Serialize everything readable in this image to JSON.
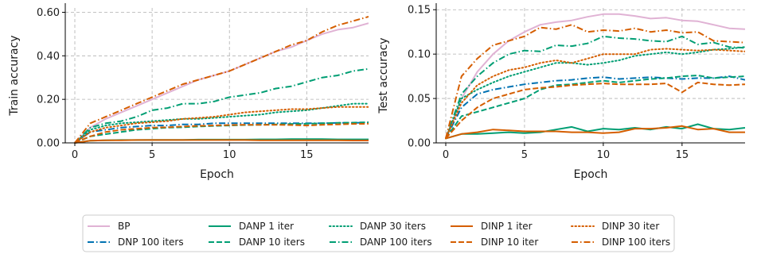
{
  "chart_data": [
    {
      "type": "line",
      "xlabel": "Epoch",
      "ylabel": "Train accuracy",
      "xlim": [
        0,
        19
      ],
      "ylim": [
        0,
        0.62
      ],
      "xticks": [
        0,
        5,
        10,
        15
      ],
      "yticks": [
        0.0,
        0.2,
        0.4,
        0.6
      ],
      "ytick_labels": [
        "0.00",
        "0.20",
        "0.40",
        "0.60"
      ],
      "xtick_labels": [
        "0",
        "5",
        "10",
        "15"
      ],
      "grid": true,
      "series": [
        {
          "name": "BP",
          "color": "#e0b2d4",
          "dash": "solid",
          "x": [
            0,
            1,
            2,
            3,
            4,
            5,
            6,
            7,
            8,
            9,
            10,
            11,
            12,
            13,
            14,
            15,
            16,
            17,
            18,
            19
          ],
          "y": [
            0.0,
            0.07,
            0.11,
            0.14,
            0.17,
            0.2,
            0.23,
            0.26,
            0.29,
            0.31,
            0.33,
            0.36,
            0.39,
            0.42,
            0.44,
            0.47,
            0.5,
            0.52,
            0.53,
            0.55
          ]
        },
        {
          "name": "DNP 100 iters",
          "color": "#0072b2",
          "dash": "dashdot",
          "x": [
            0,
            1,
            2,
            3,
            4,
            5,
            6,
            7,
            8,
            9,
            10,
            11,
            12,
            13,
            14,
            15,
            16,
            17,
            18,
            19
          ],
          "y": [
            0.0,
            0.05,
            0.06,
            0.07,
            0.075,
            0.08,
            0.08,
            0.085,
            0.085,
            0.09,
            0.09,
            0.09,
            0.09,
            0.09,
            0.09,
            0.09,
            0.09,
            0.092,
            0.092,
            0.093
          ]
        },
        {
          "name": "DANP 1 iter",
          "color": "#009e73",
          "dash": "solid",
          "x": [
            0,
            1,
            2,
            3,
            4,
            5,
            6,
            7,
            8,
            9,
            10,
            11,
            12,
            13,
            14,
            15,
            16,
            17,
            18,
            19
          ],
          "y": [
            0.0,
            0.01,
            0.012,
            0.013,
            0.013,
            0.014,
            0.014,
            0.014,
            0.015,
            0.015,
            0.015,
            0.015,
            0.016,
            0.016,
            0.017,
            0.017,
            0.017,
            0.016,
            0.016,
            0.016
          ]
        },
        {
          "name": "DANP 10 iters",
          "color": "#009e73",
          "dash": "dashed",
          "x": [
            0,
            1,
            2,
            3,
            4,
            5,
            6,
            7,
            8,
            9,
            10,
            11,
            12,
            13,
            14,
            15,
            16,
            17,
            18,
            19
          ],
          "y": [
            0.0,
            0.03,
            0.04,
            0.05,
            0.06,
            0.065,
            0.07,
            0.072,
            0.075,
            0.078,
            0.08,
            0.082,
            0.083,
            0.085,
            0.087,
            0.088,
            0.09,
            0.092,
            0.093,
            0.095
          ]
        },
        {
          "name": "DANP 30 iters",
          "color": "#009e73",
          "dash": "dotted",
          "x": [
            0,
            1,
            2,
            3,
            4,
            5,
            6,
            7,
            8,
            9,
            10,
            11,
            12,
            13,
            14,
            15,
            16,
            17,
            18,
            19
          ],
          "y": [
            0.0,
            0.06,
            0.08,
            0.09,
            0.095,
            0.1,
            0.105,
            0.11,
            0.11,
            0.115,
            0.12,
            0.125,
            0.13,
            0.14,
            0.145,
            0.15,
            0.16,
            0.17,
            0.18,
            0.18
          ]
        },
        {
          "name": "DANP 100 iters",
          "color": "#009e73",
          "dash": "dashdot",
          "x": [
            0,
            1,
            2,
            3,
            4,
            5,
            6,
            7,
            8,
            9,
            10,
            11,
            12,
            13,
            14,
            15,
            16,
            17,
            18,
            19
          ],
          "y": [
            0.0,
            0.07,
            0.09,
            0.1,
            0.12,
            0.15,
            0.16,
            0.18,
            0.18,
            0.19,
            0.21,
            0.22,
            0.23,
            0.25,
            0.26,
            0.28,
            0.3,
            0.31,
            0.33,
            0.34
          ]
        },
        {
          "name": "DINP 1 iter",
          "color": "#d55e00",
          "dash": "solid",
          "x": [
            0,
            1,
            2,
            3,
            4,
            5,
            6,
            7,
            8,
            9,
            10,
            11,
            12,
            13,
            14,
            15,
            16,
            17,
            18,
            19
          ],
          "y": [
            0.0,
            0.01,
            0.012,
            0.012,
            0.013,
            0.013,
            0.013,
            0.013,
            0.013,
            0.013,
            0.013,
            0.013,
            0.012,
            0.012,
            0.012,
            0.012,
            0.012,
            0.012,
            0.011,
            0.011
          ]
        },
        {
          "name": "DINP 10 iters",
          "color": "#d55e00",
          "dash": "dashed",
          "x": [
            0,
            1,
            2,
            3,
            4,
            5,
            6,
            7,
            8,
            9,
            10,
            11,
            12,
            13,
            14,
            15,
            16,
            17,
            18,
            19
          ],
          "y": [
            0.0,
            0.03,
            0.05,
            0.06,
            0.065,
            0.07,
            0.072,
            0.075,
            0.078,
            0.08,
            0.082,
            0.083,
            0.083,
            0.083,
            0.082,
            0.08,
            0.083,
            0.085,
            0.087,
            0.088
          ]
        },
        {
          "name": "DINP 30 iter",
          "color": "#d55e00",
          "dash": "dotted",
          "x": [
            0,
            1,
            2,
            3,
            4,
            5,
            6,
            7,
            8,
            9,
            10,
            11,
            12,
            13,
            14,
            15,
            16,
            17,
            18,
            19
          ],
          "y": [
            0.0,
            0.05,
            0.07,
            0.08,
            0.09,
            0.095,
            0.1,
            0.11,
            0.115,
            0.12,
            0.13,
            0.14,
            0.145,
            0.15,
            0.155,
            0.155,
            0.16,
            0.165,
            0.165,
            0.165
          ]
        },
        {
          "name": "DINP 100 iters",
          "color": "#d55e00",
          "dash": "dashdot",
          "x": [
            0,
            1,
            2,
            3,
            4,
            5,
            6,
            7,
            8,
            9,
            10,
            11,
            12,
            13,
            14,
            15,
            16,
            17,
            18,
            19
          ],
          "y": [
            0.0,
            0.09,
            0.12,
            0.15,
            0.18,
            0.21,
            0.24,
            0.27,
            0.29,
            0.31,
            0.33,
            0.36,
            0.39,
            0.42,
            0.45,
            0.47,
            0.51,
            0.54,
            0.56,
            0.58
          ]
        }
      ]
    },
    {
      "type": "line",
      "xlabel": "Epoch",
      "ylabel": "Test accuracy",
      "xlim": [
        0,
        19
      ],
      "ylim": [
        0,
        0.152
      ],
      "xticks": [
        0,
        5,
        10,
        15
      ],
      "yticks": [
        0.0,
        0.05,
        0.1,
        0.15
      ],
      "ytick_labels": [
        "0.00",
        "0.05",
        "0.10",
        "0.15"
      ],
      "xtick_labels": [
        "0",
        "5",
        "10",
        "15"
      ],
      "grid": true,
      "series": [
        {
          "name": "BP",
          "color": "#e0b2d4",
          "dash": "solid",
          "x": [
            0,
            1,
            2,
            3,
            4,
            5,
            6,
            7,
            8,
            9,
            10,
            11,
            12,
            13,
            14,
            15,
            16,
            17,
            18,
            19
          ],
          "y": [
            0.005,
            0.05,
            0.08,
            0.1,
            0.115,
            0.125,
            0.133,
            0.136,
            0.138,
            0.142,
            0.145,
            0.145,
            0.143,
            0.14,
            0.141,
            0.138,
            0.137,
            0.133,
            0.129,
            0.128
          ]
        },
        {
          "name": "DNP 100 iters",
          "color": "#0072b2",
          "dash": "dashdot",
          "x": [
            0,
            1,
            2,
            3,
            4,
            5,
            6,
            7,
            8,
            9,
            10,
            11,
            12,
            13,
            14,
            15,
            16,
            17,
            18,
            19
          ],
          "y": [
            0.005,
            0.04,
            0.055,
            0.06,
            0.063,
            0.066,
            0.068,
            0.07,
            0.071,
            0.073,
            0.074,
            0.072,
            0.073,
            0.074,
            0.073,
            0.072,
            0.073,
            0.073,
            0.075,
            0.071
          ]
        },
        {
          "name": "DANP 1 iter",
          "color": "#009e73",
          "dash": "solid",
          "x": [
            0,
            1,
            2,
            3,
            4,
            5,
            6,
            7,
            8,
            9,
            10,
            11,
            12,
            13,
            14,
            15,
            16,
            17,
            18,
            19
          ],
          "y": [
            0.005,
            0.01,
            0.01,
            0.011,
            0.012,
            0.011,
            0.012,
            0.015,
            0.018,
            0.013,
            0.016,
            0.015,
            0.017,
            0.015,
            0.018,
            0.016,
            0.021,
            0.016,
            0.015,
            0.017
          ]
        },
        {
          "name": "DANP 10 iters",
          "color": "#009e73",
          "dash": "dashed",
          "x": [
            0,
            1,
            2,
            3,
            4,
            5,
            6,
            7,
            8,
            9,
            10,
            11,
            12,
            13,
            14,
            15,
            16,
            17,
            18,
            19
          ],
          "y": [
            0.005,
            0.03,
            0.035,
            0.04,
            0.045,
            0.05,
            0.06,
            0.065,
            0.066,
            0.068,
            0.07,
            0.068,
            0.07,
            0.072,
            0.073,
            0.075,
            0.076,
            0.073,
            0.074,
            0.075
          ]
        },
        {
          "name": "DANP 30 iters",
          "color": "#009e73",
          "dash": "dotted",
          "x": [
            0,
            1,
            2,
            3,
            4,
            5,
            6,
            7,
            8,
            9,
            10,
            11,
            12,
            13,
            14,
            15,
            16,
            17,
            18,
            19
          ],
          "y": [
            0.005,
            0.05,
            0.06,
            0.068,
            0.075,
            0.08,
            0.085,
            0.09,
            0.09,
            0.088,
            0.09,
            0.093,
            0.098,
            0.1,
            0.102,
            0.1,
            0.102,
            0.105,
            0.106,
            0.108
          ]
        },
        {
          "name": "DANP 100 iters",
          "color": "#009e73",
          "dash": "dashdot",
          "x": [
            0,
            1,
            2,
            3,
            4,
            5,
            6,
            7,
            8,
            9,
            10,
            11,
            12,
            13,
            14,
            15,
            16,
            17,
            18,
            19
          ],
          "y": [
            0.005,
            0.055,
            0.075,
            0.09,
            0.1,
            0.104,
            0.103,
            0.11,
            0.109,
            0.112,
            0.12,
            0.118,
            0.117,
            0.115,
            0.114,
            0.12,
            0.111,
            0.113,
            0.108,
            0.107
          ]
        },
        {
          "name": "DINP 1 iter",
          "color": "#d55e00",
          "dash": "solid",
          "x": [
            0,
            1,
            2,
            3,
            4,
            5,
            6,
            7,
            8,
            9,
            10,
            11,
            12,
            13,
            14,
            15,
            16,
            17,
            18,
            19
          ],
          "y": [
            0.005,
            0.01,
            0.012,
            0.015,
            0.014,
            0.013,
            0.013,
            0.013,
            0.012,
            0.012,
            0.011,
            0.012,
            0.016,
            0.016,
            0.017,
            0.019,
            0.015,
            0.016,
            0.012,
            0.012
          ]
        },
        {
          "name": "DINP 10 iters",
          "color": "#d55e00",
          "dash": "dashed",
          "x": [
            0,
            1,
            2,
            3,
            4,
            5,
            6,
            7,
            8,
            9,
            10,
            11,
            12,
            13,
            14,
            15,
            16,
            17,
            18,
            19
          ],
          "y": [
            0.005,
            0.025,
            0.04,
            0.05,
            0.055,
            0.06,
            0.062,
            0.063,
            0.065,
            0.066,
            0.067,
            0.066,
            0.066,
            0.066,
            0.067,
            0.057,
            0.068,
            0.066,
            0.065,
            0.066
          ]
        },
        {
          "name": "DINP 30 iter",
          "color": "#d55e00",
          "dash": "dotted",
          "x": [
            0,
            1,
            2,
            3,
            4,
            5,
            6,
            7,
            8,
            9,
            10,
            11,
            12,
            13,
            14,
            15,
            16,
            17,
            18,
            19
          ],
          "y": [
            0.005,
            0.045,
            0.065,
            0.075,
            0.082,
            0.085,
            0.09,
            0.093,
            0.09,
            0.095,
            0.1,
            0.1,
            0.1,
            0.105,
            0.106,
            0.105,
            0.104,
            0.105,
            0.104,
            0.103
          ]
        },
        {
          "name": "DINP 100 iters",
          "color": "#d55e00",
          "dash": "dashdot",
          "x": [
            0,
            1,
            2,
            3,
            4,
            5,
            6,
            7,
            8,
            9,
            10,
            11,
            12,
            13,
            14,
            15,
            16,
            17,
            18,
            19
          ],
          "y": [
            0.005,
            0.075,
            0.095,
            0.11,
            0.115,
            0.12,
            0.13,
            0.128,
            0.133,
            0.125,
            0.127,
            0.126,
            0.129,
            0.125,
            0.127,
            0.124,
            0.125,
            0.115,
            0.114,
            0.113
          ]
        }
      ]
    }
  ],
  "legend": {
    "entries": [
      "BP",
      "DNP 100 iters",
      "DANP 1 iter",
      "DANP 10 iters",
      "DANP 30 iters",
      "DANP 100 iters",
      "DINP 1 iter",
      "DINP 10 iter",
      "DINP 30 iter",
      "DINP 100 iters"
    ],
    "placement": "bottom"
  }
}
